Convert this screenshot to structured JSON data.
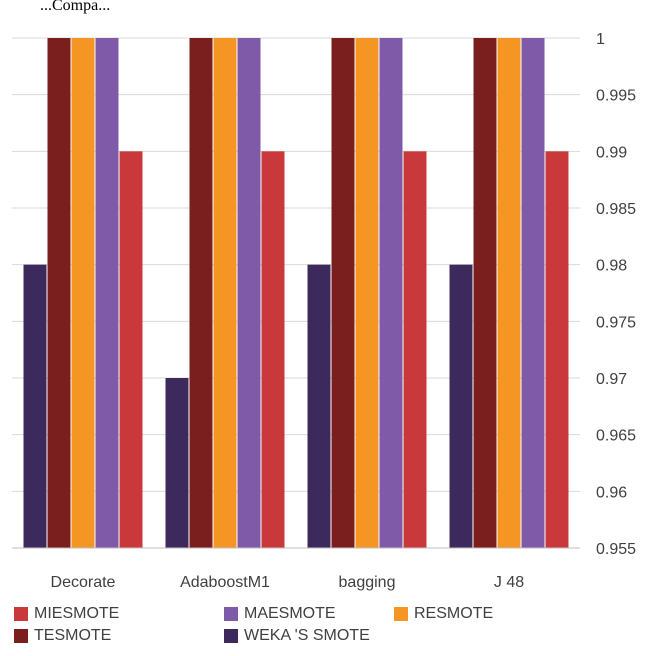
{
  "caption_fragment": "...Compa...",
  "chart_data": {
    "type": "bar",
    "title": "",
    "xlabel": "",
    "ylabel": "",
    "categories": [
      "Decorate",
      "AdaboostM1",
      "bagging",
      "J 48"
    ],
    "ylim": [
      0.955,
      1.0
    ],
    "yticks": [
      "1",
      "0.995",
      "0.99",
      "0.985",
      "0.98",
      "0.975",
      "0.97",
      "0.965",
      "0.96",
      "0.955"
    ],
    "ytick_values": [
      1.0,
      0.995,
      0.99,
      0.985,
      0.98,
      0.975,
      0.97,
      0.965,
      0.96,
      0.955
    ],
    "yaxis_position": "right",
    "grid": true,
    "legend_position": "bottom",
    "series": [
      {
        "name": "WEKA 'S SMOTE",
        "color": "#3c2a5c",
        "values": [
          0.98,
          0.97,
          0.98,
          0.98
        ]
      },
      {
        "name": "TESMOTE",
        "color": "#7a1e1e",
        "values": [
          1.0,
          1.0,
          1.0,
          1.0
        ]
      },
      {
        "name": "RESMOTE",
        "color": "#f59524",
        "values": [
          1.0,
          1.0,
          1.0,
          1.0
        ]
      },
      {
        "name": "MAESMOTE",
        "color": "#7f5aa8",
        "values": [
          1.0,
          1.0,
          1.0,
          1.0
        ]
      },
      {
        "name": "MIESMOTE",
        "color": "#c9383a",
        "values": [
          0.99,
          0.99,
          0.99,
          0.99
        ]
      }
    ],
    "legend_order": [
      "MIESMOTE",
      "MAESMOTE",
      "RESMOTE",
      "TESMOTE",
      "WEKA 'S SMOTE"
    ]
  }
}
